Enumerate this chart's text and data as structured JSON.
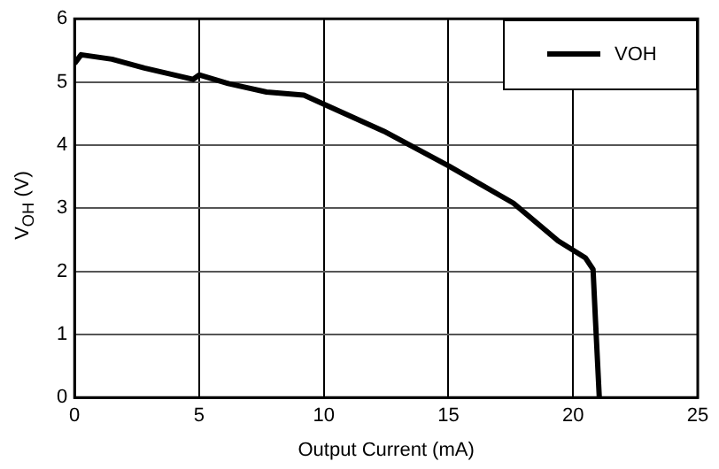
{
  "chart_data": {
    "type": "line",
    "xlabel": "Output Current (mA)",
    "ylabel": "V$_{OH}$ (V)",
    "xlim": [
      0,
      25
    ],
    "xticks": [
      0,
      5,
      10,
      15,
      20,
      25
    ],
    "ylim": [
      0,
      6
    ],
    "yticks": [
      0,
      1,
      2,
      3,
      4,
      5,
      6
    ],
    "grid": true,
    "legend": "top right",
    "marker": "none",
    "line_style": "solid",
    "series": [
      {
        "name": "VOH",
        "color": "#000000",
        "x": [
          0,
          0.26,
          1.5,
          2.8,
          4.1,
          4.75,
          5.0,
          6.2,
          7.7,
          9.2,
          10.1,
          12.4,
          15.0,
          17.6,
          19.4,
          20.5,
          20.8,
          20.9,
          21.05
        ],
        "values": [
          5.29,
          5.43,
          5.36,
          5.22,
          5.1,
          5.04,
          5.11,
          4.97,
          4.84,
          4.79,
          4.63,
          4.22,
          3.67,
          3.08,
          2.48,
          2.21,
          2.03,
          1.2,
          0
        ]
      }
    ]
  }
}
